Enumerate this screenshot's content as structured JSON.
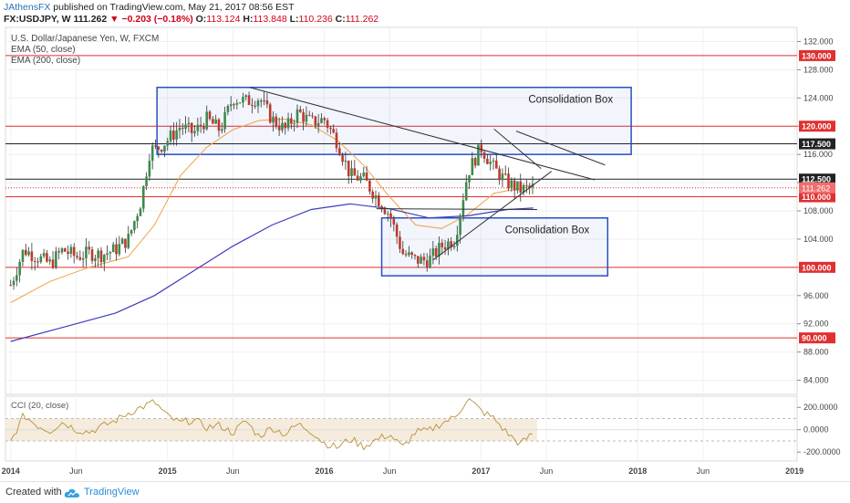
{
  "header": {
    "author": "JAthensFX",
    "published": "published on TradingView.com, May 21, 2017 08:56 EST",
    "symbol": "FX:USDJPY, W",
    "last": "111.262",
    "change": "▼ −0.203 (−0.18%)",
    "ohlc_o_label": "O:",
    "ohlc_o": "113.124",
    "ohlc_h_label": "H:",
    "ohlc_h": "113.848",
    "ohlc_l_label": "L:",
    "ohlc_l": "110.236",
    "ohlc_c_label": "C:",
    "ohlc_c": "111.262"
  },
  "footer": {
    "created": "Created with",
    "brand": "TradingView",
    "logo_icon": "tradingview-cloud-icon"
  },
  "colors": {
    "up": "#26a69a",
    "down": "#ef5350",
    "candle_up": "#3c8a4e",
    "candle_down": "#c0392b",
    "ema50": "#f0a24a",
    "ema200": "#3d3dbf",
    "hline_red": "#e03030",
    "hline_black": "#222222",
    "box": "#2a4fbf",
    "cci": "#b8913a"
  },
  "chart_data": [
    {
      "type": "candlestick",
      "title": "U.S. Dollar/Japanese Yen, W, FXCM",
      "legend": [
        "EMA (50, close)",
        "EMA (200, close)"
      ],
      "ylim": [
        82,
        134
      ],
      "y_ticks": [
        "84.000",
        "88.000",
        "92.000",
        "96.000",
        "100.000",
        "104.000",
        "108.000",
        "112.000",
        "116.000",
        "120.000",
        "124.000",
        "128.000",
        "132.000"
      ],
      "x_ticks": [
        {
          "label": "2014",
          "t": 0
        },
        {
          "label": "Jun",
          "t": 5
        },
        {
          "label": "2015",
          "t": 12
        },
        {
          "label": "Jun",
          "t": 17
        },
        {
          "label": "2016",
          "t": 24
        },
        {
          "label": "Jun",
          "t": 29
        },
        {
          "label": "2017",
          "t": 36
        },
        {
          "label": "Jun",
          "t": 41
        },
        {
          "label": "2018",
          "t": 48
        },
        {
          "label": "Jun",
          "t": 53
        },
        {
          "label": "2019",
          "t": 60
        }
      ],
      "x_range_months": [
        -0.4,
        60.2
      ],
      "price_path": [
        [
          0,
          97.5
        ],
        [
          1,
          102.5
        ],
        [
          2,
          101.5
        ],
        [
          3,
          100.5
        ],
        [
          4,
          102.5
        ],
        [
          5,
          101.5
        ],
        [
          6,
          102
        ],
        [
          7,
          101.8
        ],
        [
          8,
          102.5
        ],
        [
          9,
          104
        ],
        [
          10,
          109.5
        ],
        [
          10.7,
          117
        ],
        [
          11,
          116.5
        ],
        [
          12,
          118
        ],
        [
          13,
          120
        ],
        [
          14,
          119
        ],
        [
          15,
          121
        ],
        [
          16,
          119.5
        ],
        [
          16.5,
          121.5
        ],
        [
          17,
          124
        ],
        [
          18,
          123.5
        ],
        [
          19,
          124
        ],
        [
          20,
          121
        ],
        [
          21,
          119.5
        ],
        [
          22,
          122
        ],
        [
          23,
          120.5
        ],
        [
          24,
          121
        ],
        [
          25,
          117.8
        ],
        [
          26,
          113
        ],
        [
          27,
          112.5
        ],
        [
          28,
          110
        ],
        [
          29,
          107.5
        ],
        [
          30,
          102
        ],
        [
          31,
          101
        ],
        [
          32,
          101
        ],
        [
          33,
          103
        ],
        [
          34,
          104
        ],
        [
          35,
          113.5
        ],
        [
          36,
          117
        ],
        [
          37,
          114
        ],
        [
          38,
          112
        ],
        [
          39,
          111
        ],
        [
          40,
          111.3
        ]
      ],
      "horizontal_levels": [
        {
          "label": "130.000",
          "value": 130,
          "color": "red"
        },
        {
          "label": "120.000",
          "value": 120,
          "color": "red"
        },
        {
          "label": "117.500",
          "value": 117.5,
          "color": "black"
        },
        {
          "label": "112.500",
          "value": 112.5,
          "color": "black"
        },
        {
          "label": "110.000",
          "value": 110,
          "color": "red"
        },
        {
          "label": "100.000",
          "value": 100,
          "color": "red"
        },
        {
          "label": "90.000",
          "value": 90,
          "color": "red"
        }
      ],
      "last_price": {
        "label": "111.262",
        "value": 111.262
      },
      "boxes": [
        {
          "label": "Consolidation Box",
          "t0": 11.2,
          "t1": 47.5,
          "y0": 116,
          "y1": 125.5
        },
        {
          "label": "Consolidation Box",
          "t0": 28.4,
          "t1": 45.7,
          "y0": 98.8,
          "y1": 107
        }
      ],
      "trendlines": [
        {
          "t0": 18.3,
          "y0": 125.5,
          "t1": 44.7,
          "y1": 112.4
        },
        {
          "t0": 37,
          "y0": 119.6,
          "t1": 40.6,
          "y1": 114
        },
        {
          "t0": 38.7,
          "y0": 119.3,
          "t1": 45.5,
          "y1": 114.5
        },
        {
          "t0": 32.3,
          "y0": 101,
          "t1": 41.4,
          "y1": 113.6
        },
        {
          "t0": 28,
          "y0": 108.3,
          "t1": 40.3,
          "y1": 108.2
        }
      ],
      "ema50": [
        [
          0,
          95
        ],
        [
          3,
          98
        ],
        [
          6,
          100
        ],
        [
          9,
          101.5
        ],
        [
          11,
          106
        ],
        [
          13,
          113
        ],
        [
          15,
          117
        ],
        [
          17,
          119.5
        ],
        [
          19,
          120.8
        ],
        [
          21,
          121
        ],
        [
          23,
          120.2
        ],
        [
          25,
          118
        ],
        [
          27,
          114.5
        ],
        [
          29,
          110
        ],
        [
          31,
          106
        ],
        [
          33,
          105.5
        ],
        [
          35,
          107.5
        ],
        [
          37,
          110.5
        ],
        [
          39,
          111.2
        ],
        [
          40,
          111.5
        ]
      ],
      "ema200": [
        [
          0,
          89.5
        ],
        [
          4,
          91.5
        ],
        [
          8,
          93.5
        ],
        [
          11,
          96
        ],
        [
          14,
          99.5
        ],
        [
          17,
          103
        ],
        [
          20,
          106
        ],
        [
          23,
          108.2
        ],
        [
          26,
          109
        ],
        [
          29,
          108.3
        ],
        [
          32,
          107
        ],
        [
          35,
          107.3
        ],
        [
          38,
          108.2
        ],
        [
          40,
          108.4
        ]
      ]
    },
    {
      "type": "line",
      "title": "CCI (20, close)",
      "ylim": [
        -280,
        300
      ],
      "y_ticks": [
        "200.0000",
        "0.0000",
        "-200.0000"
      ],
      "band": [
        -100,
        100
      ],
      "series_path": [
        [
          0,
          -110
        ],
        [
          1,
          130
        ],
        [
          2,
          40
        ],
        [
          3,
          -10
        ],
        [
          4,
          70
        ],
        [
          5,
          0
        ],
        [
          6,
          -20
        ],
        [
          7,
          30
        ],
        [
          8,
          80
        ],
        [
          9,
          150
        ],
        [
          10,
          200
        ],
        [
          11,
          250
        ],
        [
          12,
          120
        ],
        [
          13,
          60
        ],
        [
          14,
          90
        ],
        [
          15,
          20
        ],
        [
          16,
          40
        ],
        [
          17,
          -30
        ],
        [
          18,
          80
        ],
        [
          19,
          -60
        ],
        [
          20,
          20
        ],
        [
          21,
          -40
        ],
        [
          22,
          50
        ],
        [
          23,
          -10
        ],
        [
          24,
          -120
        ],
        [
          25,
          -160
        ],
        [
          26,
          -80
        ],
        [
          27,
          -150
        ],
        [
          28,
          -90
        ],
        [
          29,
          -40
        ],
        [
          30,
          -160
        ],
        [
          31,
          -20
        ],
        [
          32,
          -10
        ],
        [
          33,
          60
        ],
        [
          34,
          110
        ],
        [
          35,
          280
        ],
        [
          36,
          170
        ],
        [
          37,
          100
        ],
        [
          38,
          -30
        ],
        [
          39,
          -130
        ],
        [
          40,
          -30
        ]
      ]
    }
  ]
}
